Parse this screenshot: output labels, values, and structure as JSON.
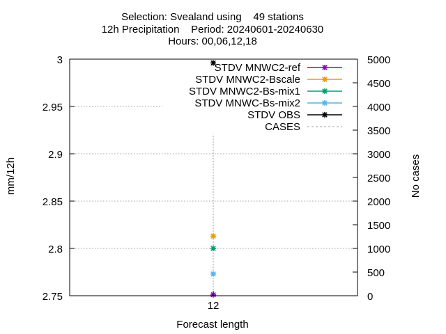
{
  "chart_data": {
    "type": "scatter",
    "title_lines": [
      "Selection: Svealand using    49 stations",
      "12h Precipitation    Period: 20240601-20240630",
      "Hours: 00,06,12,18"
    ],
    "xlabel": "Forecast length",
    "ylabel": "mm/12h",
    "y2label": "No cases",
    "categories": [
      "12"
    ],
    "ylim": [
      2.75,
      3.0
    ],
    "yticks": [
      "2.75",
      "2.8",
      "2.85",
      "2.9",
      "2.95",
      "3"
    ],
    "y2lim": [
      0,
      5000
    ],
    "y2ticks": [
      "0",
      "500",
      "1000",
      "1500",
      "2000",
      "2500",
      "3000",
      "3500",
      "4000",
      "4500",
      "5000"
    ],
    "grid": true,
    "legend_position": "top-right",
    "series": [
      {
        "name": "STDV MNWC2-ref",
        "color": "#9400d3",
        "axis": "y",
        "style": "point-line",
        "values": [
          2.751
        ]
      },
      {
        "name": "STDV MNWC2-Bscale",
        "color": "#e69f00",
        "axis": "y",
        "style": "point-line",
        "values": [
          2.813
        ]
      },
      {
        "name": "STDV MNWC2-Bs-mix1",
        "color": "#009e73",
        "axis": "y",
        "style": "point-line",
        "values": [
          2.8
        ]
      },
      {
        "name": "STDV MNWC-Bs-mix2",
        "color": "#56b4e9",
        "axis": "y",
        "style": "point-line",
        "values": [
          2.773
        ]
      },
      {
        "name": "STDV OBS",
        "color": "#000000",
        "axis": "y",
        "style": "point-line",
        "values": [
          2.996
        ]
      },
      {
        "name": "CASES",
        "color": "#a0a0a0",
        "axis": "y2",
        "style": "dashed",
        "values": [
          3420
        ]
      }
    ]
  }
}
